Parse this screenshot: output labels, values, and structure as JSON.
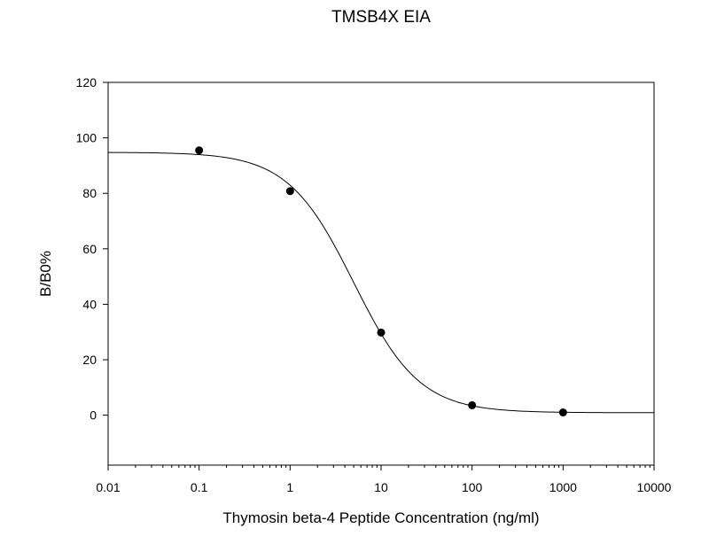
{
  "chart_data": {
    "type": "scatter",
    "title": "TMSB4X EIA",
    "xlabel": "Thymosin beta-4 Peptide Concentration (ng/ml)",
    "ylabel": "B/B0%",
    "x_scale": "log",
    "xlim": [
      0.01,
      10000
    ],
    "ylim": [
      -18,
      120
    ],
    "x_ticks": [
      0.01,
      0.1,
      1,
      10,
      100,
      1000,
      10000
    ],
    "x_tick_labels": [
      "0.01",
      "0.1",
      "1",
      "10",
      "100",
      "1000",
      "10000"
    ],
    "y_ticks": [
      0,
      20,
      40,
      60,
      80,
      100,
      120
    ],
    "y_tick_labels": [
      "0",
      "20",
      "40",
      "60",
      "80",
      "100",
      "120"
    ],
    "grid": false,
    "legend": "none",
    "series": [
      {
        "points": [
          {
            "x": 0.1,
            "y": 95.5
          },
          {
            "x": 1,
            "y": 80.8
          },
          {
            "x": 10,
            "y": 29.8
          },
          {
            "x": 100,
            "y": 3.6
          },
          {
            "x": 1000,
            "y": 1.0
          }
        ],
        "fit": "four-parameter logistic",
        "color": "#000000"
      }
    ]
  }
}
